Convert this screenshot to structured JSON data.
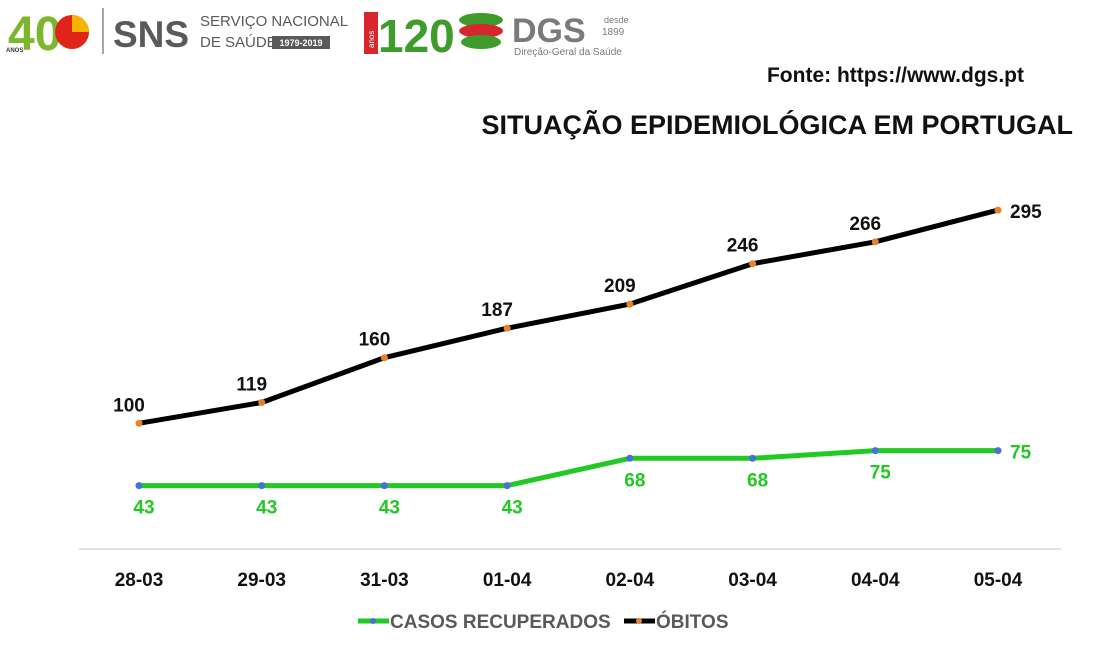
{
  "logos": {
    "anos40": {
      "number": "40",
      "sub": "ANOS"
    },
    "sns": {
      "name": "SNS",
      "line1": "SERVIÇO NACIONAL",
      "line2": "DE SAÚDE",
      "years": "1979-2019"
    },
    "anos120": {
      "number": "120",
      "sub": "anos"
    },
    "dgs": {
      "name": "DGS",
      "since1": "desde",
      "since2": "1899",
      "subtitle": "Direção-Geral da Saúde"
    }
  },
  "source": "Fonte: https://www.dgs.pt",
  "colors": {
    "recovered": "#22c922",
    "deaths": "#000000",
    "recovered_dot": "#4a6fd8",
    "deaths_dot": "#e8822a",
    "axis": "#d9d9d9"
  },
  "chart_data": {
    "type": "line",
    "title": "SITUAÇÃO EPIDEMIOLÓGICA EM PORTUGAL",
    "categories": [
      "28-03",
      "29-03",
      "31-03",
      "01-04",
      "02-04",
      "03-04",
      "04-04",
      "05-04"
    ],
    "series": [
      {
        "name": "CASOS RECUPERADOS",
        "values": [
          43,
          43,
          43,
          43,
          68,
          68,
          75,
          75
        ]
      },
      {
        "name": "ÓBITOS",
        "values": [
          100,
          119,
          160,
          187,
          209,
          246,
          266,
          295
        ]
      }
    ],
    "ylim": [
      -15,
      350
    ],
    "legend": "bottom"
  }
}
